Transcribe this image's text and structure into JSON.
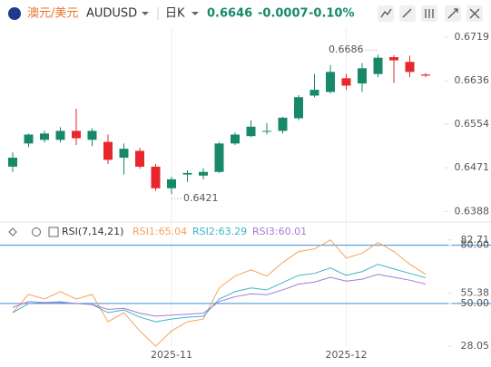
{
  "header": {
    "name": "澳元/美元",
    "symbol": "AUDUSD",
    "period": "日K",
    "price": "0.6646",
    "change": "-0.0007",
    "change_pct": "-0.10%"
  },
  "chart_data": [
    {
      "type": "candlestick",
      "categories": [
        null,
        null,
        null,
        null,
        null,
        null,
        null,
        null,
        null,
        null,
        "2025-11",
        null,
        null,
        null,
        null,
        null,
        null,
        null,
        null,
        null,
        null,
        "2025-12",
        null,
        null,
        null,
        null,
        null
      ],
      "open": [
        0.6473,
        0.6517,
        0.6524,
        0.6524,
        0.6541,
        0.6524,
        0.652,
        0.649,
        0.6503,
        0.6473,
        0.6432,
        0.6458,
        0.6456,
        0.6463,
        0.6517,
        0.6531,
        0.654,
        0.6541,
        0.6565,
        0.6608,
        0.6615,
        0.6641,
        0.6631,
        0.6649,
        0.6681,
        0.6672,
        0.6648
      ],
      "high": [
        0.65,
        0.6536,
        0.6541,
        0.6548,
        0.6583,
        0.6546,
        0.6534,
        0.6517,
        0.6509,
        0.6478,
        0.6454,
        0.6466,
        0.647,
        0.652,
        0.6538,
        0.6561,
        0.6556,
        0.6568,
        0.6609,
        0.6649,
        0.6666,
        0.6649,
        0.667,
        0.6686,
        0.6685,
        0.6684,
        0.6651
      ],
      "low": [
        0.6463,
        0.651,
        0.6519,
        0.6519,
        0.6514,
        0.6512,
        0.6478,
        0.6458,
        0.6469,
        0.6427,
        0.6421,
        0.6444,
        0.6449,
        0.6461,
        0.6514,
        0.6529,
        0.6534,
        0.6536,
        0.6561,
        0.6605,
        0.6612,
        0.6619,
        0.6615,
        0.6643,
        0.6632,
        0.6643,
        0.6643
      ],
      "close": [
        0.649,
        0.6534,
        0.6536,
        0.6541,
        0.6527,
        0.6541,
        0.6486,
        0.6507,
        0.6473,
        0.6432,
        0.6449,
        0.6461,
        0.6463,
        0.6517,
        0.6534,
        0.6549,
        0.6541,
        0.6566,
        0.6605,
        0.6619,
        0.6653,
        0.6627,
        0.666,
        0.668,
        0.6675,
        0.6653,
        0.6646
      ],
      "up_color": "#17896a",
      "down_color": "#e8262d",
      "ylim": [
        0.6373,
        0.6738
      ],
      "yticks": [
        0.6719,
        0.6636,
        0.6554,
        0.6471,
        0.6388
      ],
      "annotations": [
        "0.6686",
        "0.6421"
      ]
    },
    {
      "type": "line",
      "title": "RSI(7,14,21)",
      "series": [
        {
          "name": "RSI1:65.04",
          "color": "#f5a35c",
          "values": [
            45.3,
            54.7,
            52.3,
            56.1,
            52.3,
            54.7,
            40.6,
            45.3,
            35.9,
            28.05,
            35.9,
            40.6,
            42.0,
            58.0,
            64.1,
            67.3,
            64.1,
            71.1,
            76.7,
            78.1,
            82.71,
            73.4,
            75.8,
            81.4,
            76.7,
            70.2,
            65.04
          ]
        },
        {
          "name": "RSI2:63.29",
          "color": "#3bb4c9",
          "values": [
            45.3,
            50.0,
            50.5,
            50.9,
            50.0,
            49.5,
            45.3,
            46.7,
            43.0,
            40.6,
            42.0,
            43.0,
            43.4,
            52.3,
            56.1,
            58.0,
            57.0,
            60.8,
            64.5,
            65.5,
            68.3,
            64.5,
            66.4,
            70.2,
            67.8,
            65.5,
            63.29
          ]
        },
        {
          "name": "RSI3:60.01",
          "color": "#a57ad6",
          "values": [
            48.0,
            51.0,
            50.5,
            50.5,
            50.0,
            49.5,
            47.0,
            47.5,
            45.0,
            43.5,
            44.0,
            44.5,
            45.0,
            51.0,
            53.5,
            55.0,
            54.5,
            57.0,
            60.0,
            61.0,
            63.5,
            61.5,
            62.5,
            65.0,
            63.5,
            62.0,
            60.01
          ]
        }
      ],
      "ylim": [
        22,
        84
      ],
      "yticks": [
        {
          "value": 80,
          "label": "80.00"
        },
        82.71,
        55.38,
        {
          "value": 50,
          "label": "50.00"
        },
        28.05
      ],
      "ref_lines": [
        80,
        50
      ],
      "ref_color": "#3a8fd9"
    }
  ]
}
